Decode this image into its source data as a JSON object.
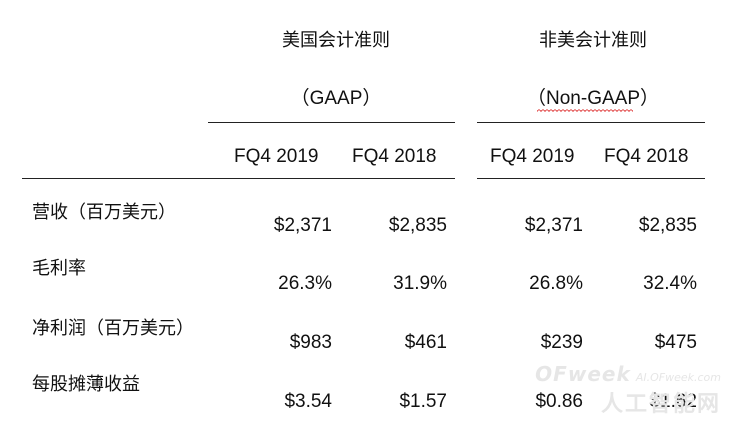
{
  "groups": [
    {
      "title": "美国会计准则",
      "subtitle_open": "（",
      "subtitle_text": "GAAP",
      "subtitle_close": "）"
    },
    {
      "title": "非美会计准则",
      "subtitle_open": "（",
      "subtitle_text": "Non-GAAP",
      "subtitle_close": "）"
    }
  ],
  "periods": [
    "FQ4 2019",
    "FQ4 2018",
    "FQ4 2019",
    "FQ4 2018"
  ],
  "rows": [
    {
      "label": "营收（百万美元）",
      "values": [
        "$2,371",
        "$2,835",
        "$2,371",
        "$2,835"
      ]
    },
    {
      "label": "毛利率",
      "values": [
        "26.3%",
        "31.9%",
        "26.8%",
        "32.4%"
      ]
    },
    {
      "label": "净利润（百万美元）",
      "values": [
        "$983",
        "$461",
        "$239",
        "$475"
      ]
    },
    {
      "label": "每股摊薄收益",
      "values": [
        "$3.54",
        "$1.57",
        "$0.86",
        "$1.62"
      ]
    }
  ],
  "watermark": {
    "brand": "OFweek",
    "site": "AI.OFweek.com",
    "name": "人工智能网"
  }
}
